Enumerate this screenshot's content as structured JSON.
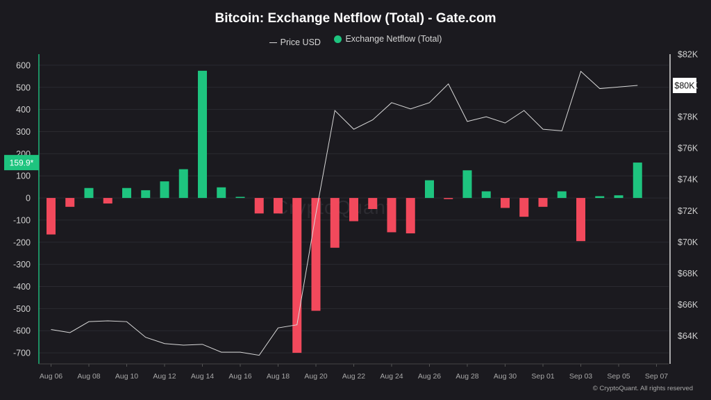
{
  "title": "Bitcoin: Exchange Netflow (Total) - Gate.com",
  "legend": {
    "price_label": "Price USD",
    "netflow_label": "Exchange Netflow (Total)"
  },
  "watermark": "CryptoQuant",
  "credit": "© CryptoQuant. All rights reserved",
  "current_value_label": "159.9*",
  "current_price_label": "$80K",
  "colors": {
    "positive": "#1ec47f",
    "negative": "#f2495c",
    "price_line": "#d9d9d9",
    "background": "#1b1a1f",
    "current_badge": "#1ec47f"
  },
  "chart_data": {
    "type": "bar",
    "title": "Bitcoin: Exchange Netflow (Total) - Gate.com",
    "grid": true,
    "legend_position": "top-center",
    "x_tick_labels": [
      "Aug 06",
      "Aug 08",
      "Aug 10",
      "Aug 12",
      "Aug 14",
      "Aug 16",
      "Aug 18",
      "Aug 20",
      "Aug 22",
      "Aug 24",
      "Aug 26",
      "Aug 28",
      "Aug 30",
      "Sep 01",
      "Sep 03",
      "Sep 05",
      "Sep 07"
    ],
    "left_axis": {
      "ylim": [
        -750,
        650
      ],
      "ticks": [
        600,
        500,
        400,
        300,
        200,
        100,
        0,
        -100,
        -200,
        -300,
        -400,
        -500,
        -600,
        -700
      ]
    },
    "right_axis": {
      "ylim": [
        62200,
        82000
      ],
      "ticks": [
        82000,
        80000,
        78000,
        76000,
        74000,
        72000,
        70000,
        68000,
        66000,
        64000
      ],
      "tick_labels": [
        "$82K",
        "$80K",
        "$78K",
        "$76K",
        "$74K",
        "$72K",
        "$70K",
        "$68K",
        "$66K",
        "$64K"
      ]
    },
    "dates": [
      "2025-08-06",
      "2025-08-07",
      "2025-08-08",
      "2025-08-09",
      "2025-08-10",
      "2025-08-11",
      "2025-08-12",
      "2025-08-13",
      "2025-08-14",
      "2025-08-15",
      "2025-08-16",
      "2025-08-17",
      "2025-08-18",
      "2025-08-19",
      "2025-08-20",
      "2025-08-21",
      "2025-08-22",
      "2025-08-23",
      "2025-08-24",
      "2025-08-25",
      "2025-08-26",
      "2025-08-27",
      "2025-08-28",
      "2025-08-29",
      "2025-08-30",
      "2025-08-31",
      "2025-09-01",
      "2025-09-02",
      "2025-09-03",
      "2025-09-04",
      "2025-09-05",
      "2025-09-06"
    ],
    "series": [
      {
        "name": "Exchange Netflow (Total)",
        "type": "bar",
        "values": [
          -165,
          -40,
          45,
          -25,
          45,
          35,
          75,
          130,
          575,
          48,
          5,
          -70,
          -70,
          -700,
          -510,
          -225,
          -105,
          -50,
          -155,
          -160,
          80,
          -5,
          125,
          30,
          -45,
          -85,
          -40,
          30,
          -195,
          8,
          12,
          160
        ]
      },
      {
        "name": "Price USD",
        "type": "line",
        "axis": "right",
        "values": [
          64400,
          64200,
          64900,
          64950,
          64900,
          63900,
          63500,
          63400,
          63450,
          62950,
          62950,
          62750,
          64500,
          64700,
          71800,
          78400,
          77200,
          77800,
          78900,
          78500,
          78900,
          80100,
          77700,
          78000,
          77600,
          78400,
          77200,
          77100,
          80900,
          79800,
          79900,
          80000
        ]
      }
    ],
    "current_value": 159.9,
    "current_price": 80000
  }
}
